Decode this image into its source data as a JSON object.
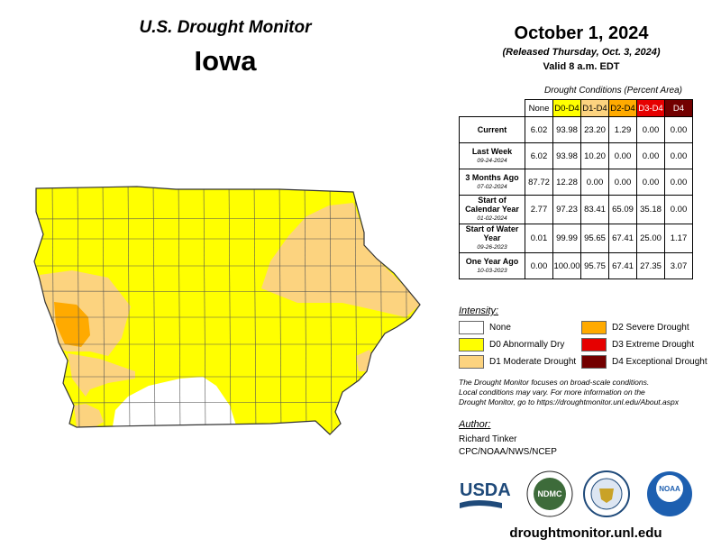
{
  "header": {
    "program_title": "U.S. Drought Monitor",
    "state": "Iowa",
    "date": "October 1, 2024",
    "released": "(Released Thursday, Oct. 3, 2024)",
    "valid": "Valid 8 a.m. EDT"
  },
  "table": {
    "caption": "Drought Conditions (Percent Area)",
    "columns": [
      {
        "label": "None",
        "color": "#ffffff",
        "text_color": "#000000"
      },
      {
        "label": "D0-D4",
        "color": "#ffff00",
        "text_color": "#000000"
      },
      {
        "label": "D1-D4",
        "color": "#fcd37f",
        "text_color": "#000000"
      },
      {
        "label": "D2-D4",
        "color": "#ffaa00",
        "text_color": "#000000"
      },
      {
        "label": "D3-D4",
        "color": "#e60000",
        "text_color": "#ffffff"
      },
      {
        "label": "D4",
        "color": "#730000",
        "text_color": "#ffffff"
      }
    ],
    "rows": [
      {
        "label": "Current",
        "date": "",
        "values": [
          "6.02",
          "93.98",
          "23.20",
          "1.29",
          "0.00",
          "0.00"
        ]
      },
      {
        "label": "Last Week",
        "date": "09-24-2024",
        "values": [
          "6.02",
          "93.98",
          "10.20",
          "0.00",
          "0.00",
          "0.00"
        ]
      },
      {
        "label": "3 Months Ago",
        "date": "07-02-2024",
        "values": [
          "87.72",
          "12.28",
          "0.00",
          "0.00",
          "0.00",
          "0.00"
        ]
      },
      {
        "label": "Start of Calendar Year",
        "date": "01-02-2024",
        "values": [
          "2.77",
          "97.23",
          "83.41",
          "65.09",
          "35.18",
          "0.00"
        ]
      },
      {
        "label": "Start of Water Year",
        "date": "09-26-2023",
        "values": [
          "0.01",
          "99.99",
          "95.65",
          "67.41",
          "25.00",
          "1.17"
        ]
      },
      {
        "label": "One Year Ago",
        "date": "10-03-2023",
        "values": [
          "0.00",
          "100.00",
          "95.75",
          "67.41",
          "27.35",
          "3.07"
        ]
      }
    ]
  },
  "legend": {
    "title": "Intensity:",
    "items": [
      {
        "label": "None",
        "color": "#ffffff"
      },
      {
        "label": "D0 Abnormally Dry",
        "color": "#ffff00"
      },
      {
        "label": "D1 Moderate Drought",
        "color": "#fcd37f"
      },
      {
        "label": "D2 Severe Drought",
        "color": "#ffaa00"
      },
      {
        "label": "D3 Extreme Drought",
        "color": "#e60000"
      },
      {
        "label": "D4 Exceptional Drought",
        "color": "#730000"
      }
    ]
  },
  "note": {
    "line1": "The Drought Monitor focuses on broad-scale conditions.",
    "line2": "Local conditions may vary. For more information on the",
    "line3": "Drought Monitor, go to https://droughtmonitor.unl.edu/About.aspx"
  },
  "author": {
    "title": "Author:",
    "name": "Richard Tinker",
    "org": "CPC/NOAA/NWS/NCEP"
  },
  "logos": {
    "usda": "USDA",
    "ndmc": "NDMC",
    "noaa": "NOAA"
  },
  "website": "droughtmonitor.unl.edu",
  "map": {
    "colors": {
      "none": "#ffffff",
      "d0": "#ffff00",
      "d1": "#fcd37f",
      "d2": "#ffaa00",
      "county_line": "#555555"
    }
  }
}
